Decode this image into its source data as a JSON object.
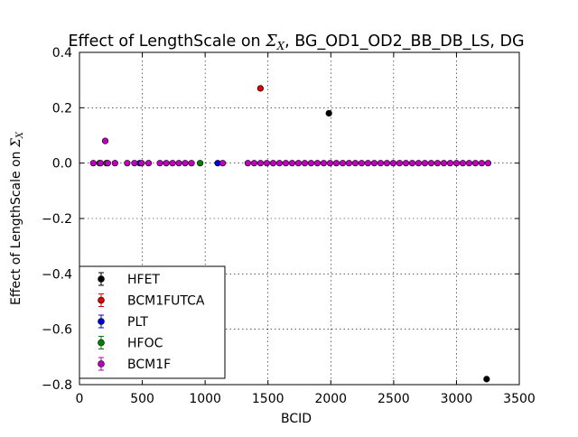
{
  "chart_data": {
    "type": "scatter",
    "title": "Effect of LengthScale on ",
    "title_math": "Σ",
    "title_sub": "X",
    "title_suffix": ", BG_OD1_OD2_BB_DB_LS, DG",
    "xlabel": "BCID",
    "ylabel": "Effect of LengthScale on ",
    "ylabel_math": "Σ",
    "ylabel_sub": "X",
    "xlim": [
      0,
      3500
    ],
    "ylim": [
      -0.8,
      0.4
    ],
    "xticks": [
      "0",
      "500",
      "1000",
      "1500",
      "2000",
      "2500",
      "3000",
      "3500"
    ],
    "yticks": [
      "−0.8",
      "−0.6",
      "−0.4",
      "−0.2",
      "0.0",
      "0.2",
      "0.4"
    ],
    "grid": true,
    "legend_position": "lower-left",
    "series": [
      {
        "name": "HFET",
        "color": "#000000",
        "points": [
          [
            1985,
            0.18
          ],
          [
            3240,
            -0.78
          ]
        ]
      },
      {
        "name": "BCM1FUTCA",
        "color": "#e00000",
        "points": [
          [
            1440,
            0.27
          ]
        ]
      },
      {
        "name": "PLT",
        "color": "#0000e0",
        "points": [
          [
            1100,
            0.0
          ],
          [
            480,
            0.0
          ]
        ]
      },
      {
        "name": "HFOC",
        "color": "#008000",
        "points": [
          [
            160,
            0.0
          ],
          [
            215,
            0.0
          ],
          [
            960,
            0.0
          ]
        ]
      },
      {
        "name": "BCM1F",
        "color": "#bf00bf",
        "points": [
          [
            205,
            0.08
          ]
        ],
        "zero_ranges": [
          [
            110,
            330,
            8
          ],
          [
            380,
            500,
            8
          ],
          [
            550,
            600,
            10
          ],
          [
            640,
            940,
            7
          ],
          [
            1140,
            1170,
            10
          ],
          [
            1340,
            3300,
            7
          ]
        ]
      }
    ]
  }
}
